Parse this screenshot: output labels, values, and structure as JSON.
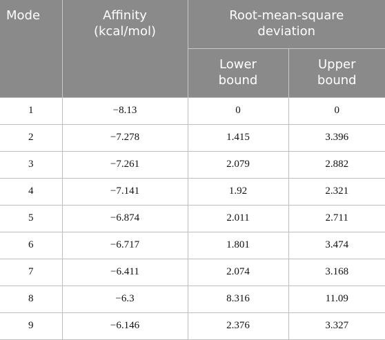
{
  "table": {
    "headers": {
      "mode": "Mode",
      "affinity_line1": "Affinity",
      "affinity_line2": "(kcal/mol)",
      "rmsd_line1": "Root-mean-square",
      "rmsd_line2": "deviation",
      "lower_line1": "Lower",
      "lower_line2": "bound",
      "upper_line1": "Upper",
      "upper_line2": "bound"
    },
    "rows": [
      {
        "mode": "1",
        "affinity": "−8.13",
        "lower": "0",
        "upper": "0"
      },
      {
        "mode": "2",
        "affinity": "−7.278",
        "lower": "1.415",
        "upper": "3.396"
      },
      {
        "mode": "3",
        "affinity": "−7.261",
        "lower": "2.079",
        "upper": "2.882"
      },
      {
        "mode": "4",
        "affinity": "−7.141",
        "lower": "1.92",
        "upper": "2.321"
      },
      {
        "mode": "5",
        "affinity": "−6.874",
        "lower": "2.011",
        "upper": "2.711"
      },
      {
        "mode": "6",
        "affinity": "−6.717",
        "lower": "1.801",
        "upper": "3.474"
      },
      {
        "mode": "7",
        "affinity": "−6.411",
        "lower": "2.074",
        "upper": "3.168"
      },
      {
        "mode": "8",
        "affinity": "−6.3",
        "lower": "8.316",
        "upper": "11.09"
      },
      {
        "mode": "9",
        "affinity": "−6.146",
        "lower": "2.376",
        "upper": "3.327"
      }
    ]
  }
}
